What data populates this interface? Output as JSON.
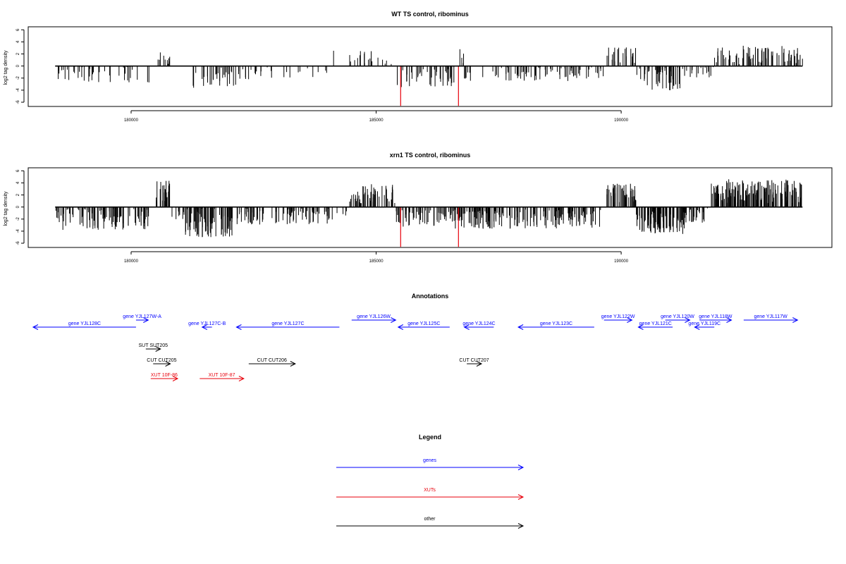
{
  "chart_data": [
    {
      "type": "bar",
      "title": "WT TS control, ribominus",
      "xlabel": "",
      "ylabel": "log2 tag density",
      "xlim": [
        177900,
        194300
      ],
      "ylim": [
        -6.7,
        6.5
      ],
      "yticks": [
        -6,
        -4,
        -2,
        0,
        2,
        4,
        6
      ],
      "xticks": [
        180000,
        185000,
        190000
      ],
      "xtick_labels": [
        "180000",
        "185000",
        "190000"
      ],
      "ytick_labels": [
        "-6",
        "-4",
        "-2",
        "0",
        "2",
        "4",
        "6"
      ],
      "colors": {
        "bars": "#000000",
        "highlight": "#e8000b",
        "baseline": "#000000"
      },
      "highlight": [
        {
          "x": 185500,
          "y": -6.6
        },
        {
          "x": 186680,
          "y": -6.6
        }
      ],
      "segments": [
        {
          "x0": 178450,
          "x1": 180400,
          "mean": -1.3,
          "spread": 1.5,
          "count": 40
        },
        {
          "x0": 180500,
          "x1": 180800,
          "mean": 1.3,
          "spread": 1.0,
          "count": 10
        },
        {
          "x0": 181200,
          "x1": 182300,
          "mean": -1.8,
          "spread": 1.8,
          "count": 35
        },
        {
          "x0": 182300,
          "x1": 184000,
          "mean": -1.2,
          "spread": 1.0,
          "count": 22
        },
        {
          "x0": 184100,
          "x1": 184150,
          "mean": 2.6,
          "spread": 0.3,
          "count": 1
        },
        {
          "x0": 184450,
          "x1": 184900,
          "mean": 1.4,
          "spread": 1.2,
          "count": 12
        },
        {
          "x0": 184900,
          "x1": 185400,
          "mean": 0.7,
          "spread": 0.7,
          "count": 6
        },
        {
          "x0": 185400,
          "x1": 186600,
          "mean": -2.0,
          "spread": 1.5,
          "count": 40
        },
        {
          "x0": 186700,
          "x1": 186800,
          "mean": 1.6,
          "spread": 1.2,
          "count": 4
        },
        {
          "x0": 186800,
          "x1": 189700,
          "mean": -1.3,
          "spread": 1.2,
          "count": 80
        },
        {
          "x0": 189700,
          "x1": 190300,
          "mean": 1.7,
          "spread": 1.4,
          "count": 22
        },
        {
          "x0": 190300,
          "x1": 191200,
          "mean": -2.2,
          "spread": 2.0,
          "count": 50
        },
        {
          "x0": 191200,
          "x1": 191900,
          "mean": -1.0,
          "spread": 1.0,
          "count": 18
        },
        {
          "x0": 191900,
          "x1": 193700,
          "mean": 1.8,
          "spread": 1.6,
          "count": 80
        }
      ]
    },
    {
      "type": "bar",
      "title": "xrn1 TS control, ribominus",
      "xlabel": "",
      "ylabel": "log2 tag density",
      "xlim": [
        177900,
        194300
      ],
      "ylim": [
        -6.7,
        6.5
      ],
      "yticks": [
        -6,
        -4,
        -2,
        0,
        2,
        4,
        6
      ],
      "xticks": [
        180000,
        185000,
        190000
      ],
      "xtick_labels": [
        "180000",
        "185000",
        "190000"
      ],
      "ytick_labels": [
        "-6",
        "-4",
        "-2",
        "0",
        "2",
        "4",
        "6"
      ],
      "colors": {
        "bars": "#000000",
        "highlight": "#e8000b",
        "baseline": "#000000"
      },
      "highlight": [
        {
          "x": 185500,
          "y": -6.6
        },
        {
          "x": 186680,
          "y": -6.6
        }
      ],
      "segments": [
        {
          "x0": 178450,
          "x1": 180400,
          "mean": -2.0,
          "spread": 1.8,
          "count": 110
        },
        {
          "x0": 180500,
          "x1": 180800,
          "mean": 2.6,
          "spread": 1.8,
          "count": 25
        },
        {
          "x0": 180800,
          "x1": 181100,
          "mean": -1.5,
          "spread": 1.2,
          "count": 8
        },
        {
          "x0": 181100,
          "x1": 182100,
          "mean": -2.6,
          "spread": 2.4,
          "count": 90
        },
        {
          "x0": 182100,
          "x1": 184200,
          "mean": -1.5,
          "spread": 1.4,
          "count": 90
        },
        {
          "x0": 184200,
          "x1": 184400,
          "mean": -0.8,
          "spread": 0.6,
          "count": 5
        },
        {
          "x0": 184450,
          "x1": 185400,
          "mean": 2.2,
          "spread": 1.6,
          "count": 55
        },
        {
          "x0": 185400,
          "x1": 186600,
          "mean": -1.9,
          "spread": 1.4,
          "count": 60
        },
        {
          "x0": 186600,
          "x1": 189600,
          "mean": -2.0,
          "spread": 1.6,
          "count": 180
        },
        {
          "x0": 189700,
          "x1": 190300,
          "mean": 2.3,
          "spread": 1.6,
          "count": 45
        },
        {
          "x0": 190300,
          "x1": 191300,
          "mean": -2.6,
          "spread": 2.0,
          "count": 90
        },
        {
          "x0": 191300,
          "x1": 191800,
          "mean": -1.4,
          "spread": 1.2,
          "count": 30
        },
        {
          "x0": 191800,
          "x1": 193700,
          "mean": 2.6,
          "spread": 2.0,
          "count": 170
        }
      ]
    },
    {
      "type": "other",
      "title": "Annotations",
      "xlim": [
        177900,
        194300
      ],
      "features": [
        {
          "label": "gene YJL128C",
          "x0": 178000,
          "x1": 180100,
          "dir": "left",
          "row": 2,
          "color": "#0000ff"
        },
        {
          "label": "gene YJL127W-A",
          "x0": 180100,
          "x1": 180350,
          "dir": "right",
          "row": 1,
          "color": "#0000ff"
        },
        {
          "label": "gene YJL127C-B",
          "x0": 181450,
          "x1": 181650,
          "dir": "left",
          "row": 2,
          "color": "#0000ff"
        },
        {
          "label": "gene YJL127C",
          "x0": 182150,
          "x1": 184250,
          "dir": "left",
          "row": 2,
          "color": "#0000ff"
        },
        {
          "label": "gene YJL126W",
          "x0": 184500,
          "x1": 185400,
          "dir": "right",
          "row": 1,
          "color": "#0000ff"
        },
        {
          "label": "gene YJL125C",
          "x0": 185450,
          "x1": 186500,
          "dir": "left",
          "row": 2,
          "color": "#0000ff"
        },
        {
          "label": "gene YJL124C",
          "x0": 186800,
          "x1": 187400,
          "dir": "left",
          "row": 2,
          "color": "#0000ff"
        },
        {
          "label": "gene YJL123C",
          "x0": 187900,
          "x1": 189450,
          "dir": "left",
          "row": 2,
          "color": "#0000ff"
        },
        {
          "label": "gene YJL122W",
          "x0": 189650,
          "x1": 190220,
          "dir": "right",
          "row": 1,
          "color": "#0000ff"
        },
        {
          "label": "gene YJL121C",
          "x0": 190350,
          "x1": 191050,
          "dir": "left",
          "row": 2,
          "color": "#0000ff"
        },
        {
          "label": "gene YJL120W",
          "x0": 190900,
          "x1": 191400,
          "dir": "right",
          "row": 1,
          "color": "#0000ff"
        },
        {
          "label": "gene YJL119C",
          "x0": 191500,
          "x1": 191900,
          "dir": "left",
          "row": 2,
          "color": "#0000ff"
        },
        {
          "label": "gene YJL118W",
          "x0": 191600,
          "x1": 192250,
          "dir": "right",
          "row": 1,
          "color": "#0000ff"
        },
        {
          "label": "gene YJL117W",
          "x0": 192500,
          "x1": 193600,
          "dir": "right",
          "row": 1,
          "color": "#0000ff"
        },
        {
          "label": "SUT SUT205",
          "x0": 180300,
          "x1": 180600,
          "dir": "right",
          "row": 3,
          "color": "#000000"
        },
        {
          "label": "CUT CUT205",
          "x0": 180450,
          "x1": 180800,
          "dir": "right",
          "row": 4,
          "color": "#000000"
        },
        {
          "label": "CUT CUT206",
          "x0": 182400,
          "x1": 183350,
          "dir": "right",
          "row": 4,
          "color": "#000000"
        },
        {
          "label": "CUT CUT207",
          "x0": 186850,
          "x1": 187150,
          "dir": "right",
          "row": 4,
          "color": "#000000"
        },
        {
          "label": "XUT 10F-86",
          "x0": 180400,
          "x1": 180950,
          "dir": "right",
          "row": 5,
          "color": "#e8000b"
        },
        {
          "label": "XUT 10F-87",
          "x0": 181400,
          "x1": 182300,
          "dir": "right",
          "row": 5,
          "color": "#e8000b"
        }
      ]
    },
    {
      "type": "other",
      "title": "Legend",
      "entries": [
        {
          "label": "genes",
          "color": "#0000ff"
        },
        {
          "label": "XUTs",
          "color": "#e8000b"
        },
        {
          "label": "other",
          "color": "#000000"
        }
      ]
    }
  ]
}
